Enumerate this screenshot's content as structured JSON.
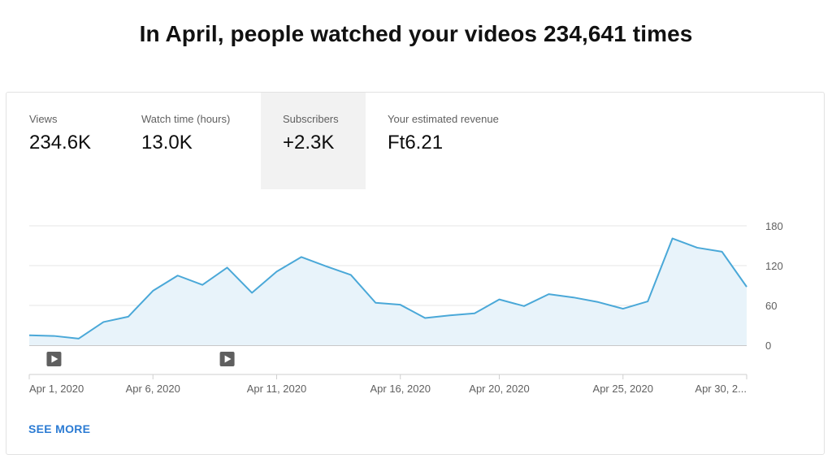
{
  "headline": "In April, people watched your videos 234,641 times",
  "metrics": [
    {
      "label": "Views",
      "value": "234.6K"
    },
    {
      "label": "Watch time (hours)",
      "value": "13.0K"
    },
    {
      "label": "Subscribers",
      "value": "+2.3K"
    },
    {
      "label": "Your estimated revenue",
      "value": "Ft6.21"
    }
  ],
  "selected_metric": "Subscribers",
  "see_more": "SEE MORE",
  "video_markers": [
    "play-icon",
    "play-icon"
  ],
  "colors": {
    "line": "#4aa8d8",
    "area": "#e8f3fa",
    "link": "#2b7bd3",
    "selected_bg": "#f2f2f2"
  },
  "chart_data": {
    "type": "area",
    "x": [
      "Apr 1, 2020",
      "Apr 2, 2020",
      "Apr 3, 2020",
      "Apr 4, 2020",
      "Apr 5, 2020",
      "Apr 6, 2020",
      "Apr 7, 2020",
      "Apr 8, 2020",
      "Apr 9, 2020",
      "Apr 10, 2020",
      "Apr 11, 2020",
      "Apr 12, 2020",
      "Apr 13, 2020",
      "Apr 14, 2020",
      "Apr 15, 2020",
      "Apr 16, 2020",
      "Apr 17, 2020",
      "Apr 18, 2020",
      "Apr 19, 2020",
      "Apr 20, 2020",
      "Apr 21, 2020",
      "Apr 22, 2020",
      "Apr 23, 2020",
      "Apr 24, 2020",
      "Apr 25, 2020",
      "Apr 26, 2020",
      "Apr 27, 2020",
      "Apr 28, 2020",
      "Apr 29, 2020",
      "Apr 30, 2020"
    ],
    "values": [
      15,
      14,
      10,
      35,
      43,
      82,
      105,
      91,
      117,
      79,
      111,
      133,
      119,
      106,
      64,
      61,
      41,
      45,
      48,
      69,
      59,
      77,
      72,
      65,
      55,
      66,
      161,
      147,
      141,
      88
    ],
    "ylim": [
      0,
      180
    ],
    "yticks": [
      "0",
      "60",
      "120",
      "180"
    ],
    "xtick_labels": [
      "Apr 1, 2020",
      "Apr 6, 2020",
      "Apr 11, 2020",
      "Apr 16, 2020",
      "Apr 20, 2020",
      "Apr 25, 2020",
      "Apr 30, 2..."
    ],
    "xtick_dates": [
      "Apr 1, 2020",
      "Apr 6, 2020",
      "Apr 11, 2020",
      "Apr 16, 2020",
      "Apr 20, 2020",
      "Apr 25, 2020",
      "Apr 30, 2020"
    ],
    "video_marker_dates": [
      "Apr 2, 2020",
      "Apr 9, 2020"
    ],
    "grid": true,
    "legend": "none"
  }
}
